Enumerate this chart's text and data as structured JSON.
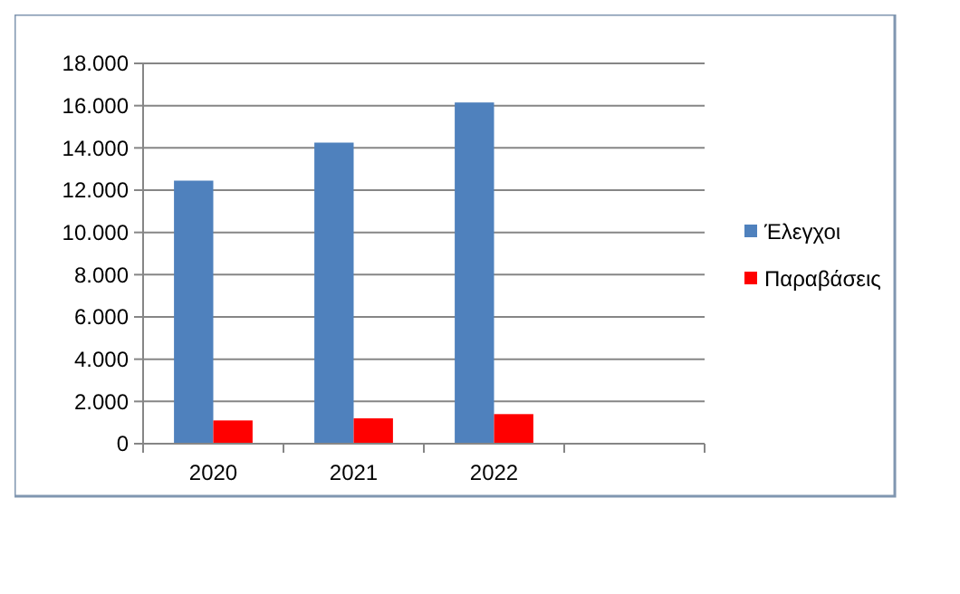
{
  "chart_data": {
    "type": "bar",
    "categories": [
      "2020",
      "2021",
      "2022",
      null
    ],
    "series": [
      {
        "name": "Έλεγχοι",
        "color": "#4f81bd",
        "values": [
          12450,
          14250,
          16150,
          null
        ]
      },
      {
        "name": "Παραβάσεις",
        "color": "#ff0000",
        "values": [
          1100,
          1200,
          1400,
          null
        ]
      }
    ],
    "ylim": [
      0,
      18000
    ],
    "yticks": [
      {
        "value": 0,
        "label": "0"
      },
      {
        "value": 2000,
        "label": "2.000"
      },
      {
        "value": 4000,
        "label": "4.000"
      },
      {
        "value": 6000,
        "label": "6.000"
      },
      {
        "value": 8000,
        "label": "8.000"
      },
      {
        "value": 10000,
        "label": "10.000"
      },
      {
        "value": 12000,
        "label": "12.000"
      },
      {
        "value": 14000,
        "label": "14.000"
      },
      {
        "value": 16000,
        "label": "16.000"
      },
      {
        "value": 18000,
        "label": "18.000"
      }
    ],
    "grid": "y",
    "legend": "right"
  }
}
